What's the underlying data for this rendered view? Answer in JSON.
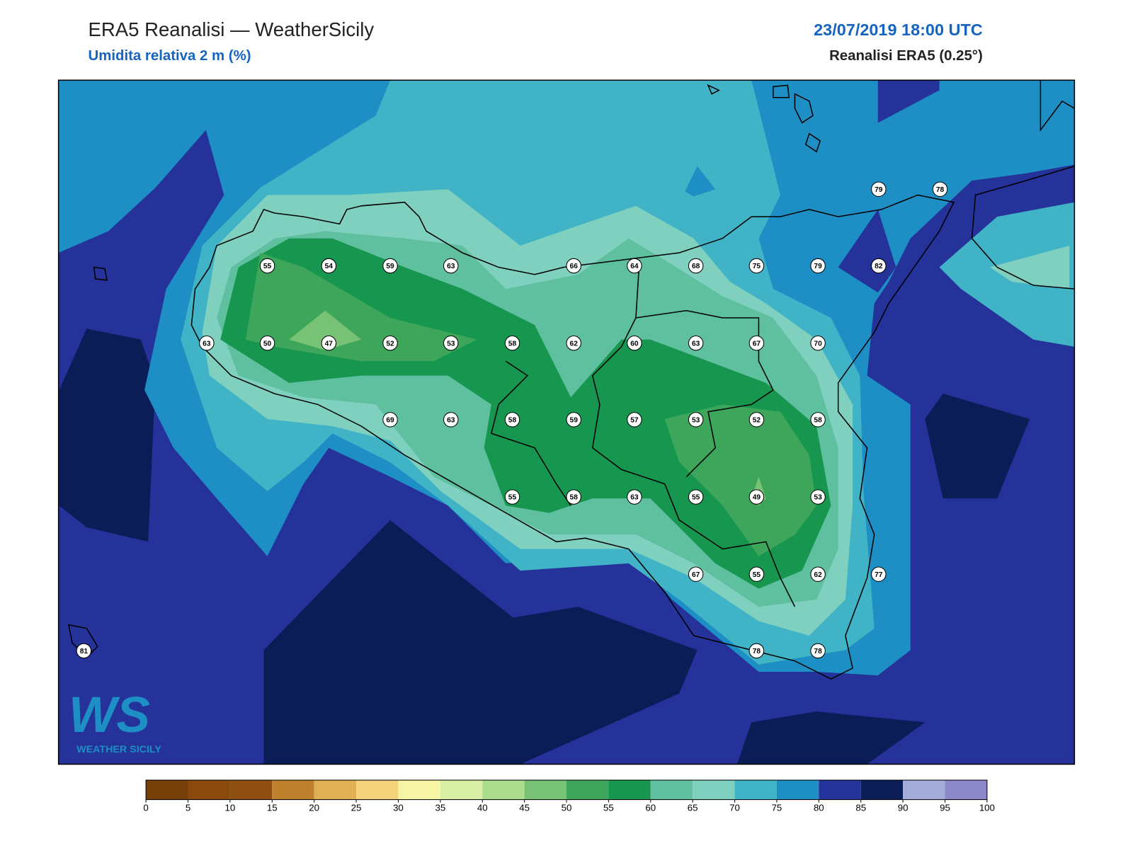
{
  "header": {
    "title": "ERA5 Reanalisi — WeatherSicily",
    "subtitle": "Umidita relativa 2 m (%)",
    "datetime": "23/07/2019 18:00 UTC",
    "source": "Reanalisi ERA5 (0.25°)"
  },
  "stations": [
    55,
    54,
    59,
    63,
    66,
    64,
    68,
    75,
    79,
    82,
    79,
    78,
    63,
    50,
    47,
    52,
    53,
    58,
    62,
    60,
    63,
    67,
    70,
    69,
    63,
    58,
    59,
    57,
    53,
    52,
    58,
    55,
    58,
    63,
    55,
    49,
    53,
    67,
    55,
    62,
    77,
    81,
    78,
    78
  ],
  "colorbar": {
    "ticks": [
      0,
      5,
      10,
      15,
      20,
      25,
      30,
      35,
      40,
      45,
      50,
      55,
      60,
      65,
      70,
      75,
      80,
      85,
      90,
      95,
      100
    ],
    "colors": [
      "#754008",
      "#8a4a0c",
      "#8f4e12",
      "#bf812d",
      "#dfb056",
      "#f2d37c",
      "#f6f4a5",
      "#d9eea5",
      "#acdc8e",
      "#77c274",
      "#3da65a",
      "#16964e",
      "#5fc09f",
      "#80d0c0",
      "#40b4c6",
      "#1d8fc4",
      "#24329a",
      "#0a1d57",
      "#a6acd8",
      "#8b89c8"
    ]
  },
  "logo": {
    "mark": "WS",
    "text": "WEATHER SICILY"
  }
}
